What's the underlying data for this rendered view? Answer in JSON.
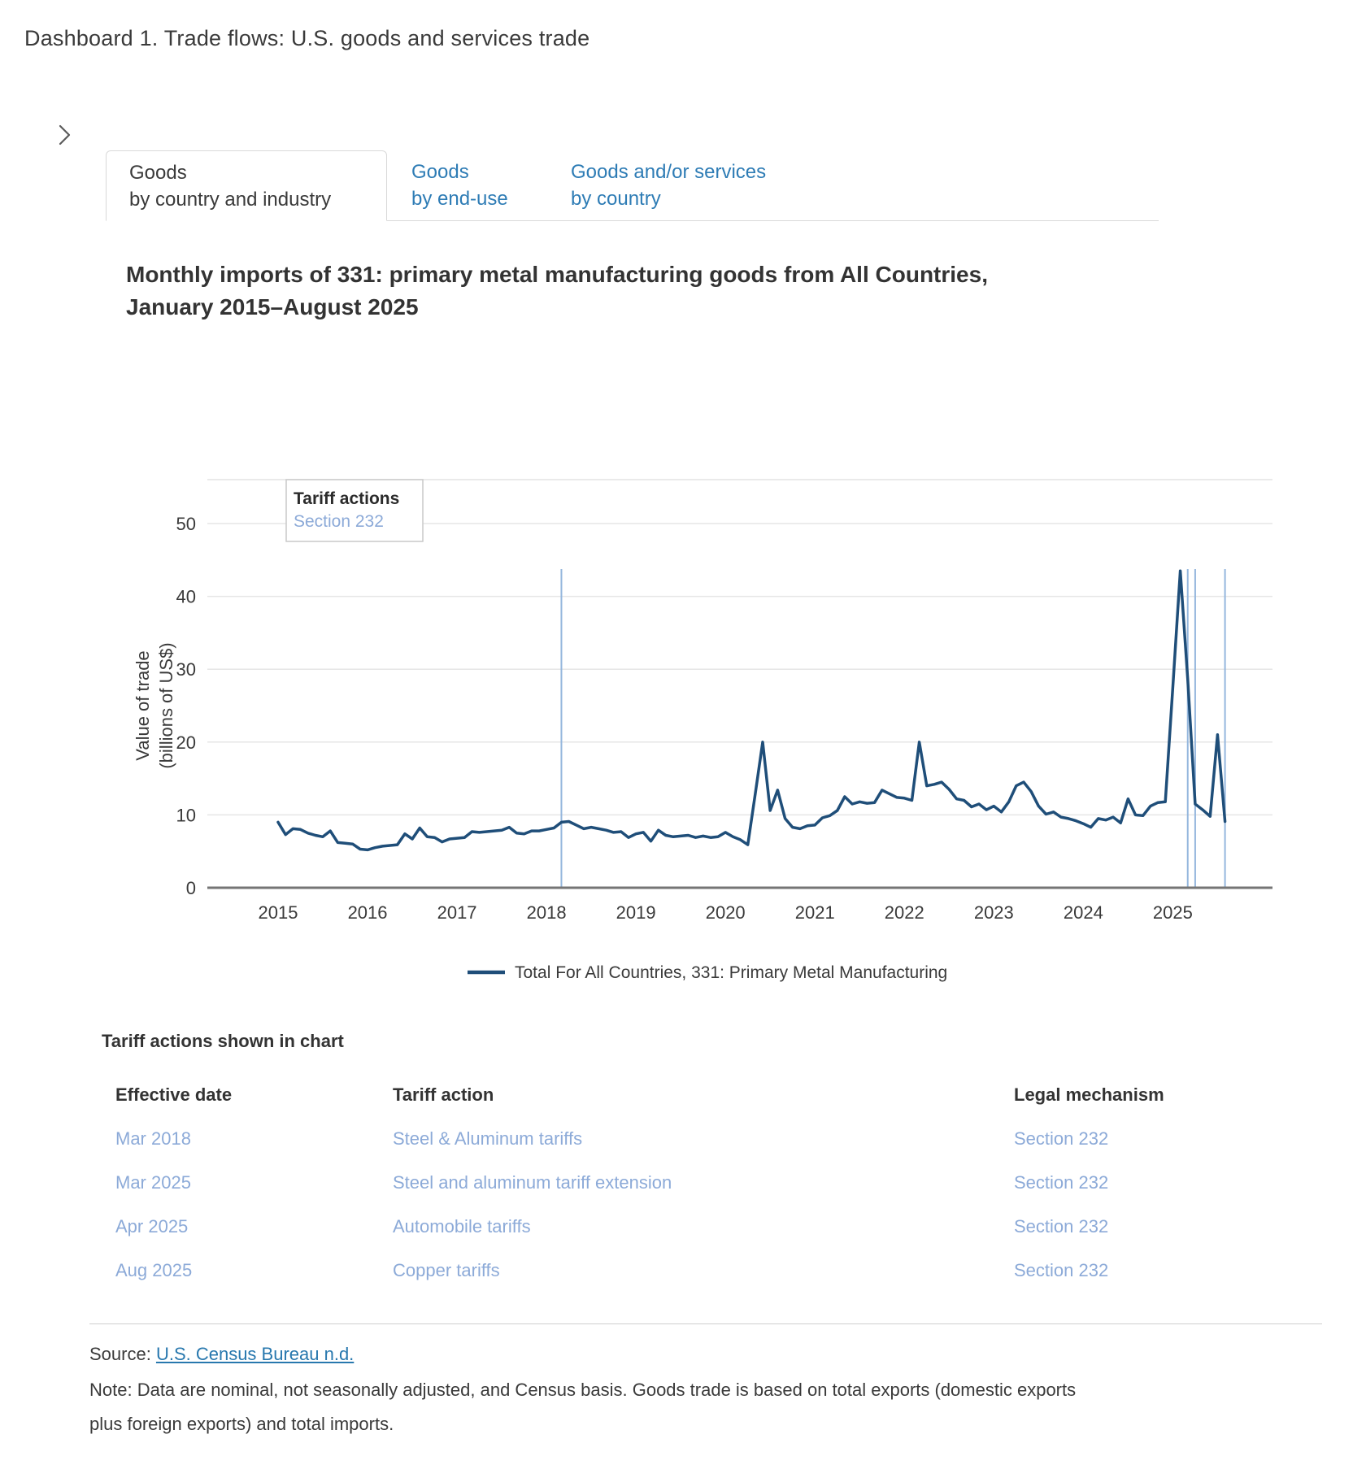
{
  "page": {
    "title": "Dashboard 1. Trade flows: U.S. goods and services trade"
  },
  "tabs": [
    {
      "line1": "Goods",
      "line2": "by country and industry",
      "active": true
    },
    {
      "line1": "Goods",
      "line2": "by end-use",
      "active": false
    },
    {
      "line1": "Goods and/or services",
      "line2": "by country",
      "active": false
    }
  ],
  "chart_heading": {
    "line1": "Monthly imports of 331: primary metal manufacturing goods from All Countries,",
    "line2": "January 2015–August 2025"
  },
  "chart_data": {
    "type": "line",
    "title": "Monthly imports of 331: primary metal manufacturing goods from All Countries, January 2015–August 2025",
    "xlabel": "",
    "ylabel": "Value of trade (billions of US$)",
    "ylabel_lines": [
      "Value of trade",
      "(billions of US$)"
    ],
    "ylim": [
      0,
      56
    ],
    "y_ticks": [
      0,
      10,
      20,
      30,
      40,
      50
    ],
    "x_tick_years": [
      "2015",
      "2016",
      "2017",
      "2018",
      "2019",
      "2020",
      "2021",
      "2022",
      "2023",
      "2024",
      "2025"
    ],
    "x_range": [
      "Jan 2015",
      "Aug 2025"
    ],
    "grid": true,
    "legend_position": "bottom-center",
    "series": [
      {
        "name": "Total For All Countries, 331: Primary Metal Manufacturing",
        "color": "#1f4e79",
        "start_month": "2015-01",
        "frequency": "monthly",
        "values": [
          9.0,
          7.3,
          8.1,
          8.0,
          7.5,
          7.2,
          7.0,
          7.8,
          6.2,
          6.1,
          6.0,
          5.3,
          5.2,
          5.5,
          5.7,
          5.8,
          5.9,
          7.4,
          6.7,
          8.2,
          7.0,
          6.9,
          6.3,
          6.7,
          6.8,
          6.9,
          7.7,
          7.6,
          7.7,
          7.8,
          7.9,
          8.3,
          7.5,
          7.4,
          7.8,
          7.8,
          8.0,
          8.2,
          9.0,
          9.1,
          8.6,
          8.1,
          8.3,
          8.1,
          7.9,
          7.6,
          7.7,
          6.9,
          7.4,
          7.6,
          6.4,
          7.9,
          7.2,
          7.0,
          7.1,
          7.2,
          6.9,
          7.1,
          6.9,
          7.0,
          7.6,
          7.0,
          6.6,
          5.9,
          12.9,
          20.0,
          10.6,
          13.4,
          9.5,
          8.3,
          8.1,
          8.5,
          8.6,
          9.6,
          9.9,
          10.6,
          12.5,
          11.5,
          11.8,
          11.6,
          11.7,
          13.4,
          12.9,
          12.4,
          12.3,
          12.0,
          20.0,
          14.0,
          14.2,
          14.5,
          13.5,
          12.2,
          12.0,
          11.1,
          11.5,
          10.7,
          11.2,
          10.4,
          11.8,
          14.0,
          14.5,
          13.2,
          11.2,
          10.1,
          10.4,
          9.7,
          9.5,
          9.2,
          8.8,
          8.3,
          9.5,
          9.3,
          9.7,
          8.9,
          12.2,
          10.0,
          9.9,
          11.2,
          11.7,
          11.8,
          27.5,
          43.5,
          28.7,
          11.5,
          10.7,
          9.8,
          21.0,
          9.1
        ]
      }
    ],
    "annotation_legend": {
      "title": "Tariff actions",
      "entries": [
        {
          "label": "Section 232",
          "color": "#8caad8"
        }
      ]
    },
    "tariff_lines": [
      {
        "date": "Mar 2018",
        "month_index": 38
      },
      {
        "date": "Mar 2025",
        "month_index": 122
      },
      {
        "date": "Apr 2025",
        "month_index": 123
      },
      {
        "date": "Aug 2025",
        "month_index": 127
      }
    ],
    "tariff_line_color": "#94b6dd"
  },
  "tariff_table": {
    "heading": "Tariff actions shown in chart",
    "columns": [
      "Effective date",
      "Tariff action",
      "Legal mechanism"
    ],
    "rows": [
      [
        "Mar 2018",
        "Steel & Aluminum tariffs",
        "Section 232"
      ],
      [
        "Mar 2025",
        "Steel and aluminum tariff extension",
        "Section 232"
      ],
      [
        "Apr 2025",
        "Automobile tariffs",
        "Section 232"
      ],
      [
        "Aug 2025",
        "Copper tariffs",
        "Section 232"
      ]
    ]
  },
  "footer": {
    "source_label": "Source: ",
    "source_link": "U.S. Census Bureau n.d.",
    "note_lines": [
      "Note: Data are nominal, not seasonally adjusted, and Census basis. Goods trade is based on total exports (domestic exports",
      "plus foreign exports) and total imports."
    ]
  }
}
